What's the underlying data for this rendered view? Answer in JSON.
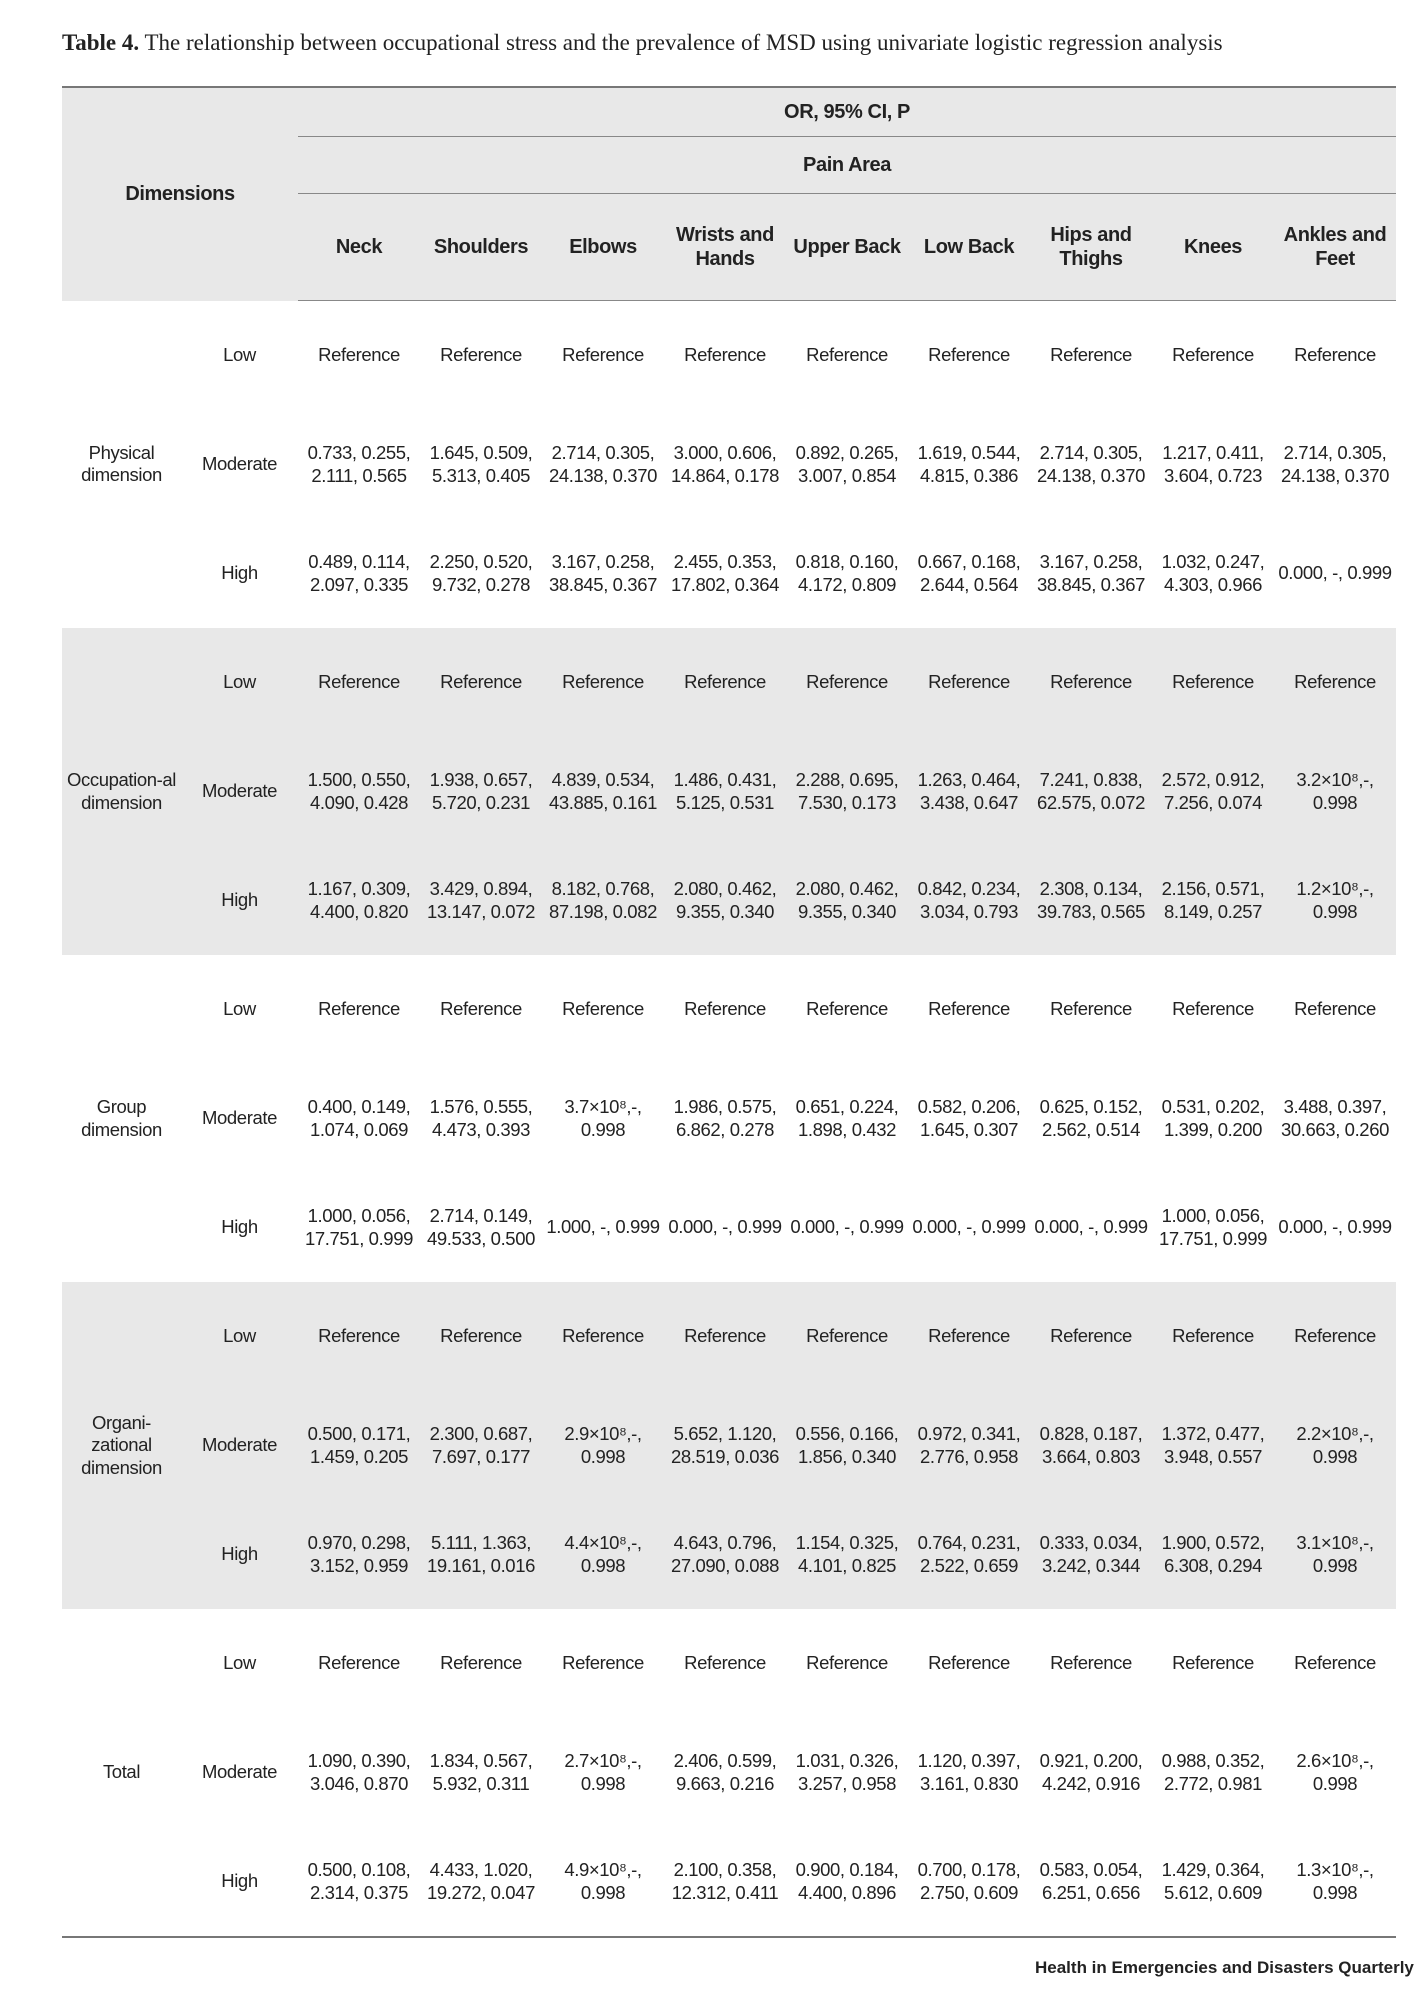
{
  "title": {
    "label": "Table 4.",
    "text": "The relationship between occupational stress and the prevalence of MSD using univariate logistic regression analysis"
  },
  "header": {
    "dimensions": "Dimensions",
    "group": "OR, 95% CI, P",
    "subgroup": "Pain Area",
    "columns": [
      "Neck",
      "Shoulders",
      "Elbows",
      "Wrists and Hands",
      "Upper Back",
      "Low Back",
      "Hips and Thighs",
      "Knees",
      "Ankles and Feet"
    ]
  },
  "groups": [
    {
      "name": "Physical dimension",
      "rows": [
        {
          "level": "Low",
          "cells": [
            "Reference",
            "Reference",
            "Reference",
            "Reference",
            "Reference",
            "Reference",
            "Reference",
            "Reference",
            "Reference"
          ]
        },
        {
          "level": "Moderate",
          "cells": [
            "0.733, 0.255, 2.111, 0.565",
            "1.645, 0.509, 5.313, 0.405",
            "2.714, 0.305, 24.138, 0.370",
            "3.000, 0.606, 14.864, 0.178",
            "0.892, 0.265, 3.007, 0.854",
            "1.619, 0.544, 4.815, 0.386",
            "2.714, 0.305, 24.138, 0.370",
            "1.217, 0.411, 3.604, 0.723",
            "2.714, 0.305, 24.138, 0.370"
          ]
        },
        {
          "level": "High",
          "cells": [
            "0.489, 0.114, 2.097, 0.335",
            "2.250, 0.520, 9.732, 0.278",
            "3.167, 0.258, 38.845, 0.367",
            "2.455, 0.353, 17.802, 0.364",
            "0.818, 0.160, 4.172, 0.809",
            "0.667, 0.168, 2.644, 0.564",
            "3.167, 0.258, 38.845, 0.367",
            "1.032, 0.247, 4.303, 0.966",
            "0.000, -, 0.999"
          ]
        }
      ]
    },
    {
      "name": "Occupation-al dimension",
      "rows": [
        {
          "level": "Low",
          "cells": [
            "Reference",
            "Reference",
            "Reference",
            "Reference",
            "Reference",
            "Reference",
            "Reference",
            "Reference",
            "Reference"
          ]
        },
        {
          "level": "Moderate",
          "cells": [
            "1.500, 0.550, 4.090, 0.428",
            "1.938, 0.657, 5.720, 0.231",
            "4.839, 0.534, 43.885, 0.161",
            "1.486, 0.431, 5.125, 0.531",
            "2.288, 0.695, 7.530, 0.173",
            "1.263, 0.464, 3.438, 0.647",
            "7.241, 0.838, 62.575, 0.072",
            "2.572, 0.912, 7.256, 0.074",
            "3.2×10⁸,-, 0.998"
          ]
        },
        {
          "level": "High",
          "cells": [
            "1.167, 0.309, 4.400, 0.820",
            "3.429, 0.894, 13.147, 0.072",
            "8.182, 0.768, 87.198, 0.082",
            "2.080, 0.462, 9.355, 0.340",
            "2.080, 0.462, 9.355, 0.340",
            "0.842, 0.234, 3.034, 0.793",
            "2.308, 0.134, 39.783, 0.565",
            "2.156, 0.571, 8.149, 0.257",
            "1.2×10⁸,-, 0.998"
          ]
        }
      ]
    },
    {
      "name": "Group dimension",
      "rows": [
        {
          "level": "Low",
          "cells": [
            "Reference",
            "Reference",
            "Reference",
            "Reference",
            "Reference",
            "Reference",
            "Reference",
            "Reference",
            "Reference"
          ]
        },
        {
          "level": "Moderate",
          "cells": [
            "0.400, 0.149, 1.074, 0.069",
            "1.576, 0.555, 4.473, 0.393",
            "3.7×10⁸,-, 0.998",
            "1.986, 0.575, 6.862, 0.278",
            "0.651, 0.224, 1.898, 0.432",
            "0.582, 0.206, 1.645, 0.307",
            "0.625, 0.152, 2.562, 0.514",
            "0.531, 0.202, 1.399, 0.200",
            "3.488, 0.397, 30.663, 0.260"
          ]
        },
        {
          "level": "High",
          "cells": [
            "1.000, 0.056, 17.751, 0.999",
            "2.714, 0.149, 49.533, 0.500",
            "1.000, -, 0.999",
            "0.000, -, 0.999",
            "0.000, -, 0.999",
            "0.000, -, 0.999",
            "0.000, -, 0.999",
            "1.000, 0.056, 17.751, 0.999",
            "0.000, -, 0.999"
          ]
        }
      ]
    },
    {
      "name": "Organi-zational dimension",
      "rows": [
        {
          "level": "Low",
          "cells": [
            "Reference",
            "Reference",
            "Reference",
            "Reference",
            "Reference",
            "Reference",
            "Reference",
            "Reference",
            "Reference"
          ]
        },
        {
          "level": "Moderate",
          "cells": [
            "0.500, 0.171, 1.459, 0.205",
            "2.300, 0.687, 7.697, 0.177",
            "2.9×10⁸,-, 0.998",
            "5.652, 1.120, 28.519, 0.036",
            "0.556, 0.166, 1.856, 0.340",
            "0.972, 0.341, 2.776, 0.958",
            "0.828, 0.187, 3.664, 0.803",
            "1.372, 0.477, 3.948, 0.557",
            "2.2×10⁸,-, 0.998"
          ]
        },
        {
          "level": "High",
          "cells": [
            "0.970, 0.298, 3.152, 0.959",
            "5.111, 1.363, 19.161, 0.016",
            "4.4×10⁸,-, 0.998",
            "4.643, 0.796, 27.090, 0.088",
            "1.154, 0.325, 4.101, 0.825",
            "0.764, 0.231, 2.522, 0.659",
            "0.333, 0.034, 3.242, 0.344",
            "1.900, 0.572, 6.308, 0.294",
            "3.1×10⁸,-, 0.998"
          ]
        }
      ]
    },
    {
      "name": "Total",
      "rows": [
        {
          "level": "Low",
          "cells": [
            "Reference",
            "Reference",
            "Reference",
            "Reference",
            "Reference",
            "Reference",
            "Reference",
            "Reference",
            "Reference"
          ]
        },
        {
          "level": "Moderate",
          "cells": [
            "1.090, 0.390, 3.046, 0.870",
            "1.834, 0.567, 5.932, 0.311",
            "2.7×10⁸,-, 0.998",
            "2.406, 0.599, 9.663, 0.216",
            "1.031, 0.326, 3.257, 0.958",
            "1.120, 0.397, 3.161, 0.830",
            "0.921, 0.200, 4.242, 0.916",
            "0.988, 0.352, 2.772, 0.981",
            "2.6×10⁸,-, 0.998"
          ]
        },
        {
          "level": "High",
          "cells": [
            "0.500, 0.108, 2.314, 0.375",
            "4.433, 1.020, 19.272, 0.047",
            "4.9×10⁸,-, 0.998",
            "2.100, 0.358, 12.312, 0.411",
            "0.900, 0.184, 4.400, 0.896",
            "0.700, 0.178, 2.750, 0.609",
            "0.583, 0.054, 6.251, 0.656",
            "1.429, 0.364, 5.612, 0.609",
            "1.3×10⁸,-, 0.998"
          ]
        }
      ]
    }
  ],
  "footer": {
    "logo": "Health in Emergencies and Disasters Quarterly"
  }
}
